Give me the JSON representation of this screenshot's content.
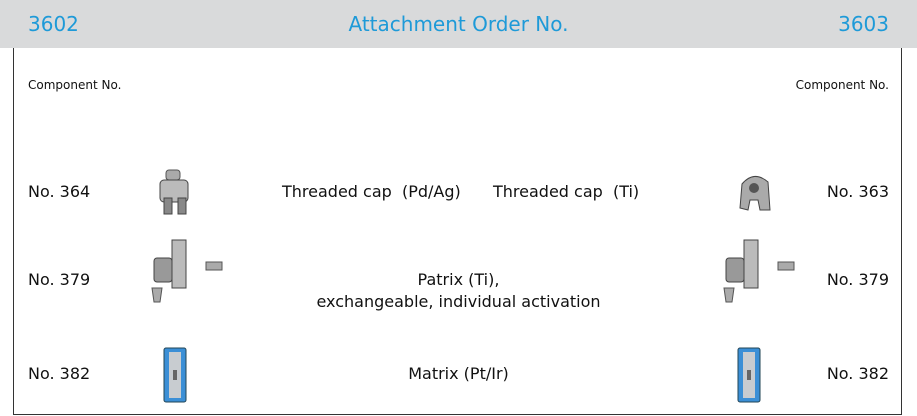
{
  "header": {
    "left": "3602",
    "title": "Attachment Order No.",
    "right": "3603"
  },
  "labels": {
    "left": "Component No.",
    "right": "Component No."
  },
  "rows": [
    {
      "left": "No. 364",
      "description_left": "Threaded cap  (Pd/Ag)",
      "description_right": "Threaded cap  (Ti)",
      "right": "No. 363"
    },
    {
      "left": "No. 379",
      "description": [
        "Patrix (Ti),",
        "exchangeable, individual activation"
      ],
      "right": "No. 379"
    },
    {
      "left": "No. 382",
      "description": "Matrix (Pt/Ir)",
      "right": "No. 382"
    }
  ]
}
